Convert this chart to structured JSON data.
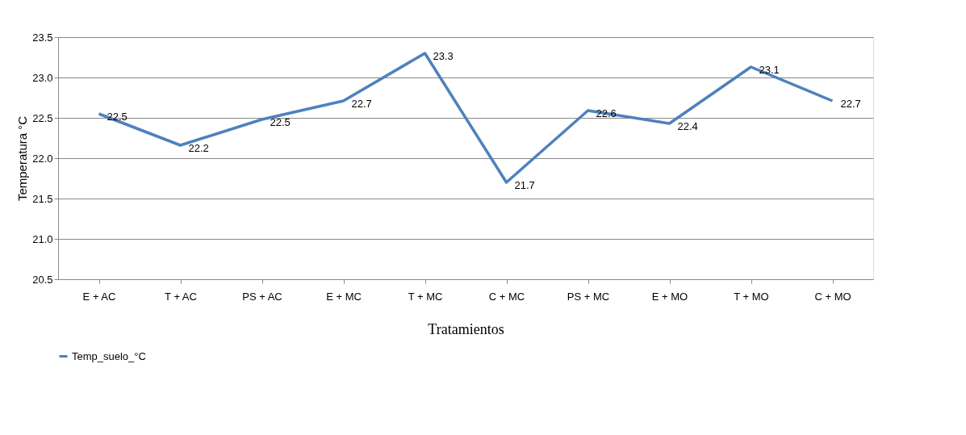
{
  "chart_data": {
    "type": "line",
    "xlabel": "Tratamientos",
    "ylabel": "Temperatura °C",
    "categories": [
      "E + AC",
      "T + AC",
      "PS + AC",
      "E + MC",
      "T + MC",
      "C + MC",
      "PS + MC",
      "E + MO",
      "T + MO",
      "C + MO"
    ],
    "series": [
      {
        "name": "Temp_suelo_°C",
        "color": "#4f81bd",
        "values": [
          22.55,
          22.16,
          22.48,
          22.71,
          23.3,
          21.7,
          22.59,
          22.43,
          23.13,
          22.71
        ],
        "value_labels": [
          "22.5",
          "22.2",
          "22.5",
          "22.7",
          "23.3",
          "21.7",
          "22.6",
          "22.4",
          "23.1",
          "22.7"
        ]
      }
    ],
    "ylim": [
      20.5,
      23.5
    ],
    "yticks": [
      20.5,
      {
        "value": 21,
        "label": "21.0"
      },
      21.5,
      {
        "value": 22,
        "label": "22.0"
      },
      22.5,
      {
        "value": 23,
        "label": "23.0"
      },
      23.5
    ],
    "grid": "y",
    "legend": "bottom",
    "marker": "none",
    "line_style": "solid"
  }
}
